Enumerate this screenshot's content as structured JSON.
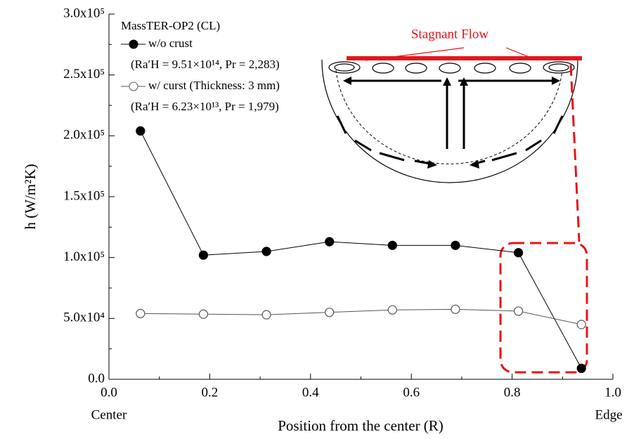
{
  "chart_data": {
    "type": "line",
    "x": [
      0.0625,
      0.1875,
      0.3125,
      0.4375,
      0.5625,
      0.6875,
      0.8125,
      0.9375
    ],
    "series": [
      {
        "name": "w/o crust",
        "color": "#000000",
        "marker": "filled",
        "values": [
          204000,
          102000,
          105000,
          113000,
          110000,
          110000,
          104000,
          9000
        ]
      },
      {
        "name": "w/ curst (Thickness: 3 mm)",
        "color": "#555555",
        "marker": "open",
        "values": [
          54000,
          53500,
          53000,
          55000,
          57000,
          57500,
          56000,
          45000
        ]
      }
    ],
    "legend_title": "MassTER-OP2 (CL)",
    "legend_notes": [
      "(Ra′H = 9.51×10¹⁴, Pr = 2,283)",
      "(Ra′H = 6.23×10¹³, Pr = 1,979)"
    ],
    "x_label": "Position from the center (R)",
    "y_label": "h (W/m²K)",
    "x_end_labels": [
      "Center",
      "Edge"
    ],
    "annotation": "Stagnant Flow",
    "xlim": [
      0,
      1
    ],
    "xticks": [
      {
        "value": 0,
        "label": "0.0"
      },
      0.2,
      0.4,
      0.6,
      0.8,
      {
        "value": 1,
        "label": "1.0"
      }
    ],
    "ylim": [
      0,
      300000
    ],
    "yticks": [
      {
        "value": 0,
        "label": "0.0"
      },
      {
        "value": 50000,
        "label": "5.0x10⁴"
      },
      {
        "value": 100000,
        "label": "1.0x10⁵"
      },
      {
        "value": 150000,
        "label": "1.5x10⁵"
      },
      {
        "value": 200000,
        "label": "2.0x10⁵"
      },
      {
        "value": 250000,
        "label": "2.5x10⁵"
      },
      {
        "value": 300000,
        "label": "3.0x10⁵"
      }
    ],
    "grid": false
  }
}
